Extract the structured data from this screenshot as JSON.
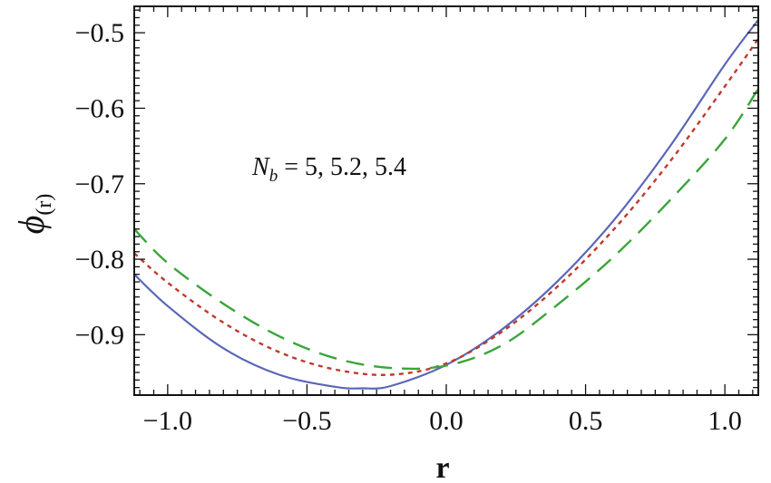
{
  "chart_data": {
    "type": "line",
    "title": "",
    "xlabel": "r",
    "ylabel": "ϕ",
    "ylabel_sub": "(r)",
    "xlim": [
      -1.12,
      1.12
    ],
    "ylim": [
      -0.98,
      -0.465
    ],
    "x_ticks": [
      -1.0,
      -0.5,
      0.0,
      0.5,
      1.0
    ],
    "x_tick_labels": [
      "−1.0",
      "−0.5",
      "0.0",
      "0.5",
      "1.0"
    ],
    "y_ticks": [
      -0.9,
      -0.8,
      -0.7,
      -0.6,
      -0.5
    ],
    "y_tick_labels": [
      "−0.9",
      "−0.8",
      "−0.7",
      "−0.6",
      "−0.5"
    ],
    "grid": false,
    "annotation": {
      "var": "N",
      "sub": "b",
      "rest": " =  5,  5.2,  5.4"
    },
    "series": [
      {
        "color": "#5a66b8",
        "dash": "solid",
        "x": [
          -1.12,
          -1.0,
          -0.8,
          -0.6,
          -0.4,
          -0.3,
          -0.2,
          0.0,
          0.2,
          0.4,
          0.6,
          0.8,
          1.0,
          1.12
        ],
        "y": [
          -0.82,
          -0.862,
          -0.918,
          -0.953,
          -0.969,
          -0.971,
          -0.968,
          -0.94,
          -0.893,
          -0.829,
          -0.749,
          -0.652,
          -0.542,
          -0.483
        ]
      },
      {
        "color": "#c0392b",
        "dash": "short",
        "x": [
          -1.12,
          -1.0,
          -0.8,
          -0.6,
          -0.4,
          -0.2,
          0.0,
          0.2,
          0.4,
          0.6,
          0.8,
          1.0,
          1.12
        ],
        "y": [
          -0.792,
          -0.831,
          -0.884,
          -0.923,
          -0.946,
          -0.953,
          -0.938,
          -0.896,
          -0.836,
          -0.761,
          -0.672,
          -0.571,
          -0.508
        ]
      },
      {
        "color": "#3aa53a",
        "dash": "long",
        "x": [
          -1.12,
          -1.0,
          -0.8,
          -0.6,
          -0.4,
          -0.2,
          0.0,
          0.2,
          0.4,
          0.6,
          0.8,
          1.0,
          1.12
        ],
        "y": [
          -0.76,
          -0.805,
          -0.859,
          -0.902,
          -0.931,
          -0.944,
          -0.941,
          -0.914,
          -0.86,
          -0.797,
          -0.723,
          -0.641,
          -0.574
        ]
      }
    ]
  }
}
